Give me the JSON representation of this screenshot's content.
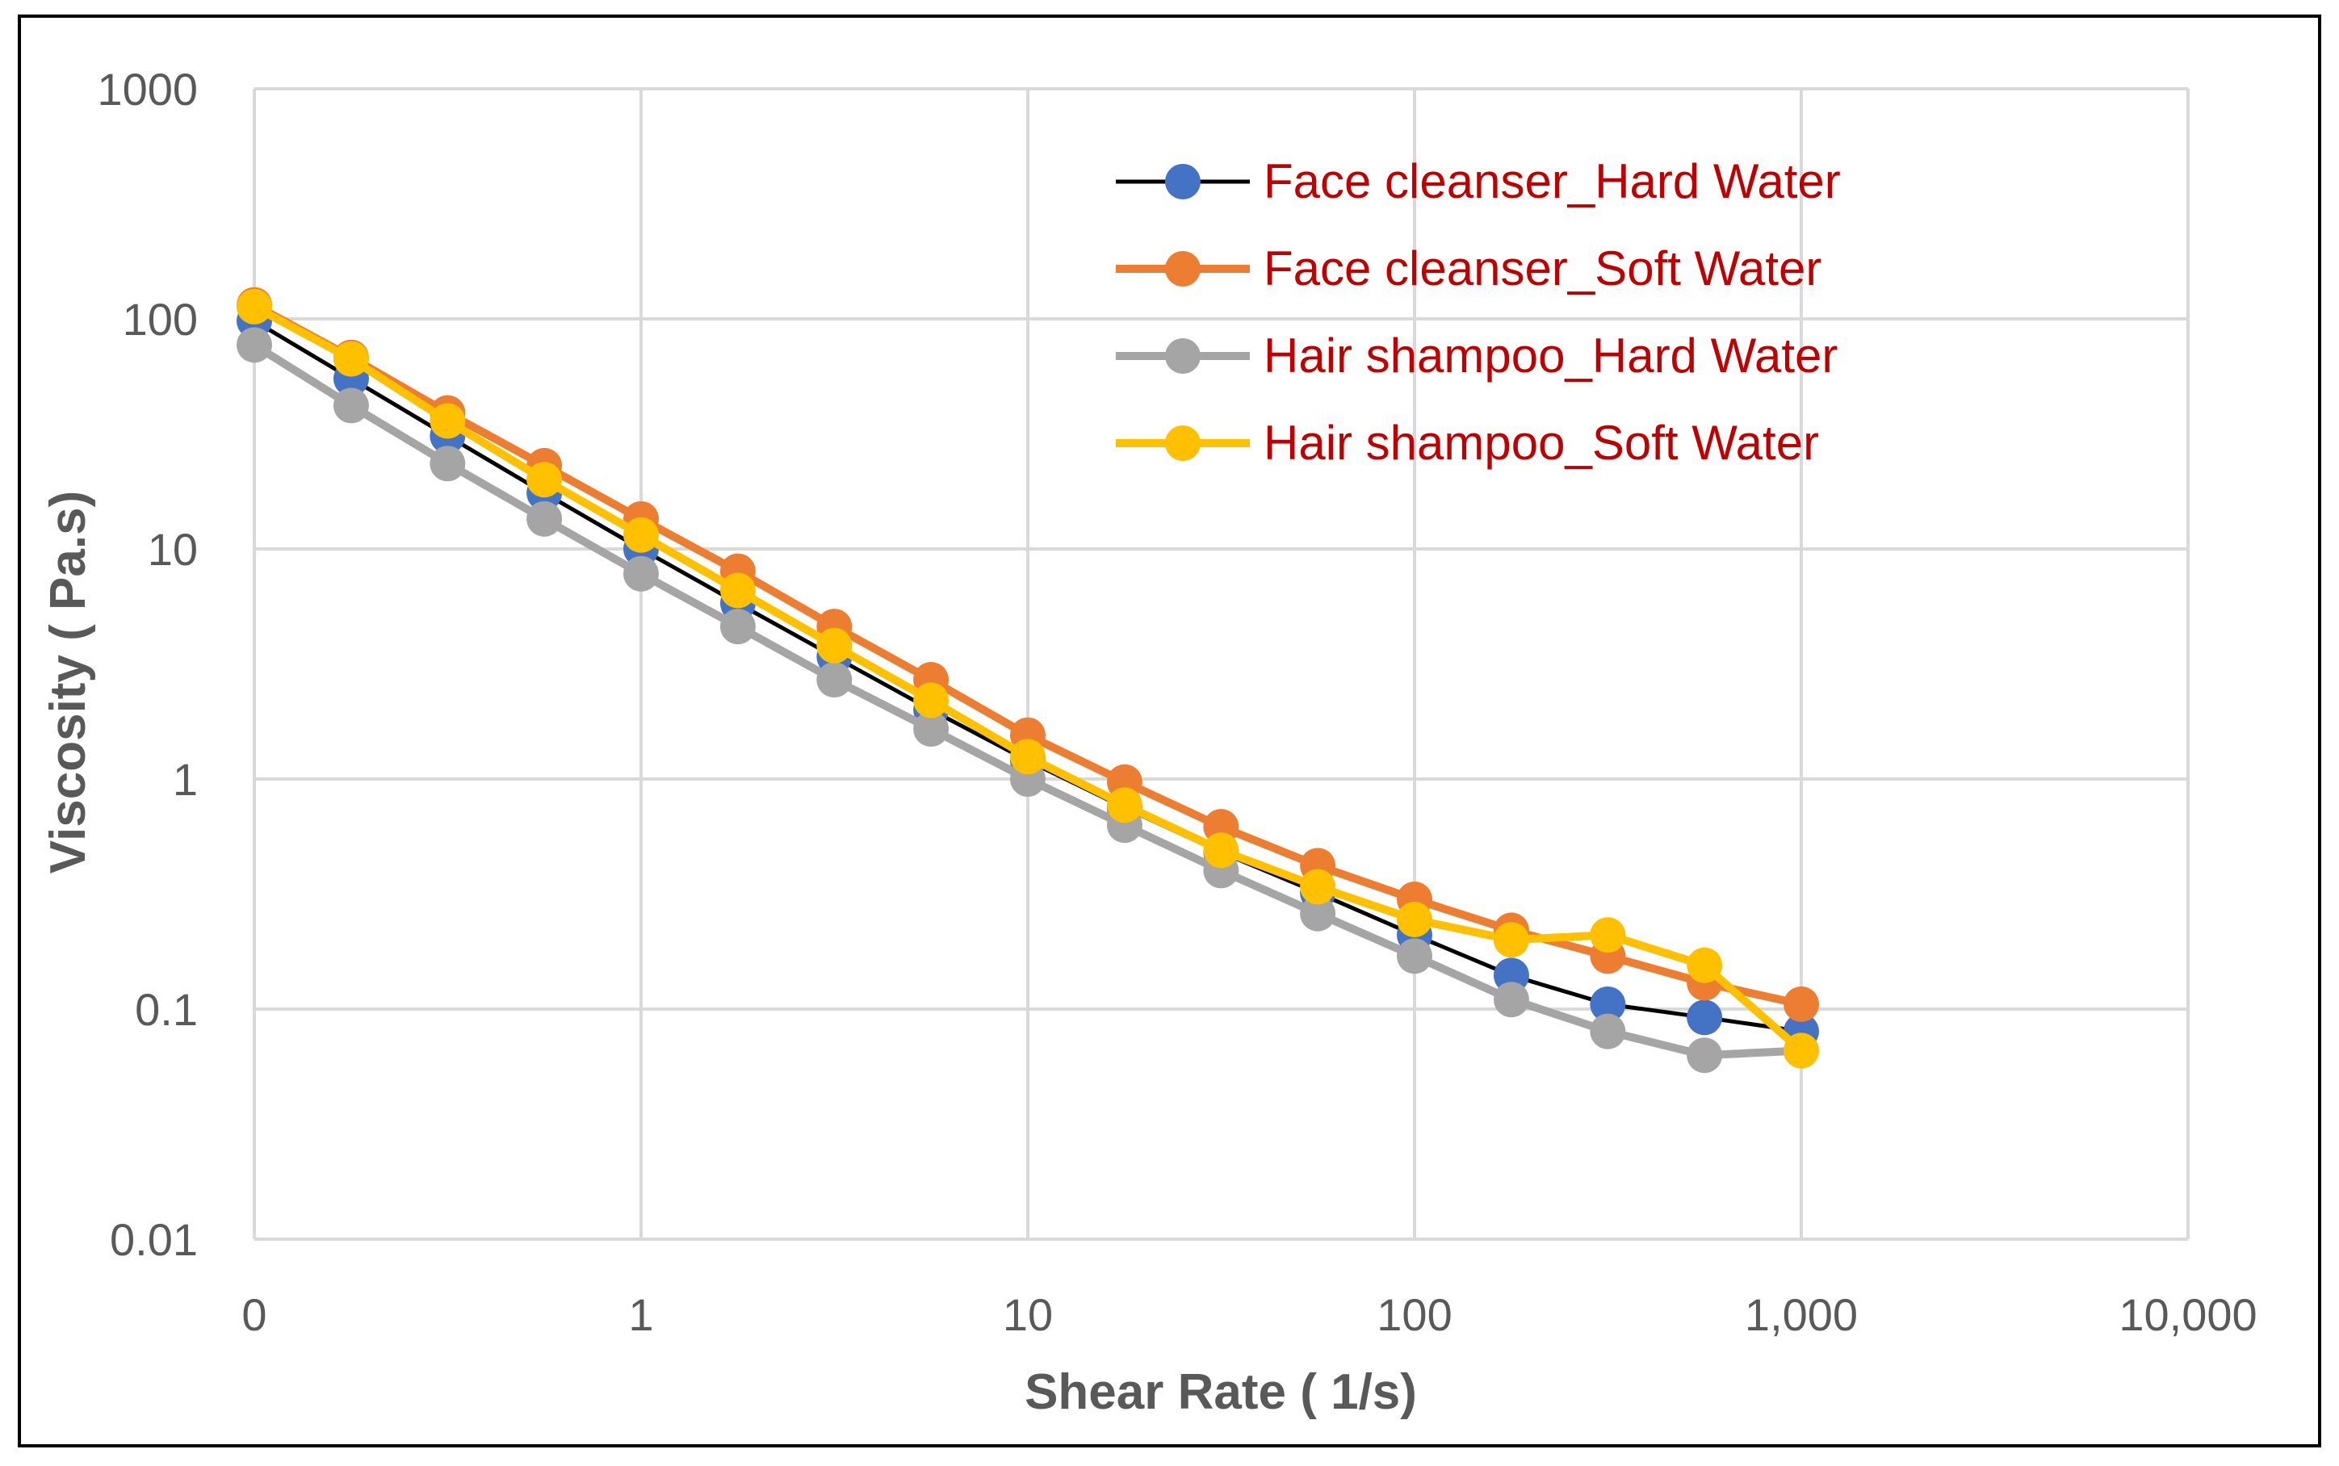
{
  "chart_data": {
    "type": "line",
    "title": "",
    "xlabel": "Shear Rate ( 1/s)",
    "ylabel": "Viscosity ( Pa.s)",
    "x_scale": "log",
    "y_scale": "log",
    "xlim": [
      0.1,
      10000
    ],
    "ylim": [
      0.01,
      1000
    ],
    "x_ticks": [
      {
        "value": 0.1,
        "label": "0"
      },
      {
        "value": 1,
        "label": "1"
      },
      {
        "value": 10,
        "label": "10"
      },
      {
        "value": 100,
        "label": "100"
      },
      {
        "value": 1000,
        "label": "1,000"
      },
      {
        "value": 10000,
        "label": "10,000"
      }
    ],
    "y_ticks": [
      {
        "value": 0.01,
        "label": "0.01"
      },
      {
        "value": 0.1,
        "label": "0.1"
      },
      {
        "value": 1,
        "label": "1"
      },
      {
        "value": 10,
        "label": "10"
      },
      {
        "value": 100,
        "label": "100"
      },
      {
        "value": 1000,
        "label": "1000"
      }
    ],
    "grid": true,
    "legend_position": "top-right",
    "x": [
      0.1,
      0.178,
      0.316,
      0.562,
      1,
      1.78,
      3.16,
      5.62,
      10,
      17.8,
      31.6,
      56.2,
      100,
      178,
      316,
      562,
      1000
    ],
    "series": [
      {
        "name": "Face cleanser_Hard Water",
        "marker_color": "#4472C4",
        "line_color": "#000000",
        "values": [
          98,
          55,
          31,
          17.5,
          10,
          5.8,
          3.4,
          2.0,
          1.2,
          0.75,
          0.48,
          0.32,
          0.21,
          0.14,
          0.105,
          0.092,
          0.08
        ]
      },
      {
        "name": "Face cleanser_Soft Water",
        "marker_color": "#ED7D31",
        "line_color": "#ED7D31",
        "values": [
          115,
          68,
          39,
          23,
          13.5,
          8.0,
          4.6,
          2.7,
          1.55,
          0.97,
          0.62,
          0.42,
          0.3,
          0.22,
          0.17,
          0.13,
          0.105
        ]
      },
      {
        "name": "Hair shampoo_Hard Water",
        "marker_color": "#A5A5A5",
        "line_color": "#A5A5A5",
        "values": [
          77,
          42,
          23.5,
          13.5,
          7.8,
          4.6,
          2.7,
          1.65,
          1.0,
          0.63,
          0.4,
          0.26,
          0.17,
          0.11,
          0.08,
          0.063,
          0.066
        ]
      },
      {
        "name": "Hair shampoo_Soft Water",
        "marker_color": "#FFC000",
        "line_color": "#FFC000",
        "values": [
          113,
          67,
          36,
          20,
          11.5,
          6.6,
          3.8,
          2.2,
          1.25,
          0.77,
          0.49,
          0.34,
          0.245,
          0.2,
          0.21,
          0.155,
          0.066
        ]
      }
    ],
    "legend_text_color": "#C00000"
  }
}
